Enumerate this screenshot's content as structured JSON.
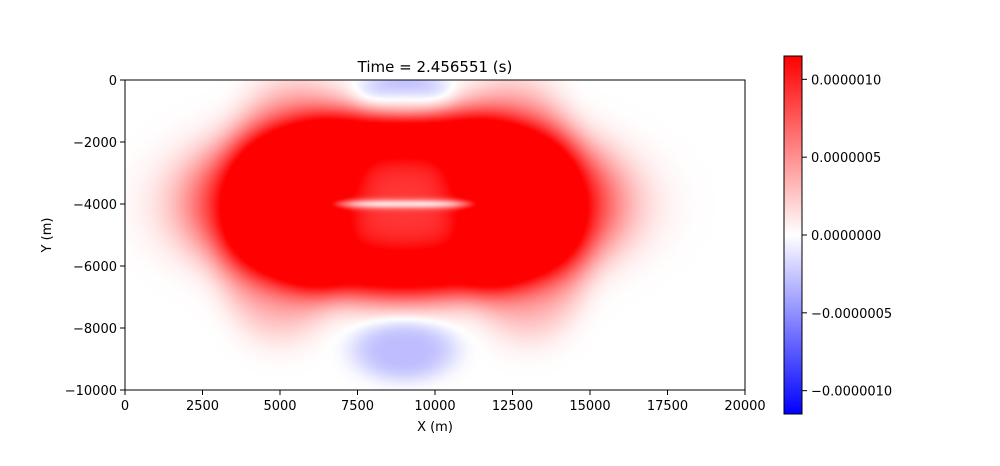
{
  "chart_data": {
    "type": "heatmap",
    "title": "Time = 2.456551 (s)",
    "xlabel": "X (m)",
    "ylabel": "Y (m)",
    "xlim": [
      0,
      20000
    ],
    "ylim": [
      -10000,
      0
    ],
    "x_ticks": [
      0,
      2500,
      5000,
      7500,
      10000,
      12500,
      15000,
      17500,
      20000
    ],
    "x_tick_labels": [
      "0",
      "2500",
      "5000",
      "7500",
      "10000",
      "12500",
      "15000",
      "17500",
      "20000"
    ],
    "y_ticks": [
      0,
      -2000,
      -4000,
      -6000,
      -8000,
      -10000
    ],
    "y_tick_labels": [
      "0",
      "−2000",
      "−4000",
      "−6000",
      "−8000",
      "−10000"
    ],
    "colorbar": {
      "colormap": "bwr",
      "vmin": -1.15e-06,
      "vmax": 1.15e-06,
      "low_color": "#0000ff",
      "mid_color": "#ffffff",
      "high_color": "#ff0000",
      "ticks": [
        1e-06,
        5e-07,
        0,
        -5e-07,
        -1e-06
      ],
      "tick_labels": [
        "0.0000010",
        "0.0000005",
        "0.0000000",
        "−0.0000005",
        "−0.0000010"
      ]
    },
    "field_features": [
      {
        "kind": "ring",
        "center_x": 9000,
        "center_y": -4000,
        "radius_x": 5200,
        "radius_y": 2400,
        "thickness": 900,
        "value": 1.1e-06
      },
      {
        "kind": "blob",
        "center_x": 9000,
        "center_y": -4000,
        "radius_x": 4300,
        "radius_y": 2000,
        "value": 9e-07
      },
      {
        "kind": "streak",
        "center_x": 9000,
        "center_y": -4000,
        "radius_x": 2200,
        "radius_y": 150,
        "value": 0.0
      },
      {
        "kind": "blob",
        "center_x": 5500,
        "center_y": -3000,
        "radius_x": 1800,
        "radius_y": 2600,
        "value": 5e-07
      },
      {
        "kind": "blob",
        "center_x": 12500,
        "center_y": -3000,
        "radius_x": 1800,
        "radius_y": 2600,
        "value": 5e-07
      },
      {
        "kind": "blob",
        "center_x": 5000,
        "center_y": -5800,
        "radius_x": 1700,
        "radius_y": 2200,
        "value": 4e-07
      },
      {
        "kind": "blob",
        "center_x": 13000,
        "center_y": -5800,
        "radius_x": 1700,
        "radius_y": 2200,
        "value": 4e-07
      },
      {
        "kind": "blob",
        "center_x": 9000,
        "center_y": -500,
        "radius_x": 1400,
        "radius_y": 700,
        "value": -3.5e-07
      },
      {
        "kind": "blob",
        "center_x": 9000,
        "center_y": -8700,
        "radius_x": 1500,
        "radius_y": 900,
        "value": -3e-07
      }
    ]
  }
}
